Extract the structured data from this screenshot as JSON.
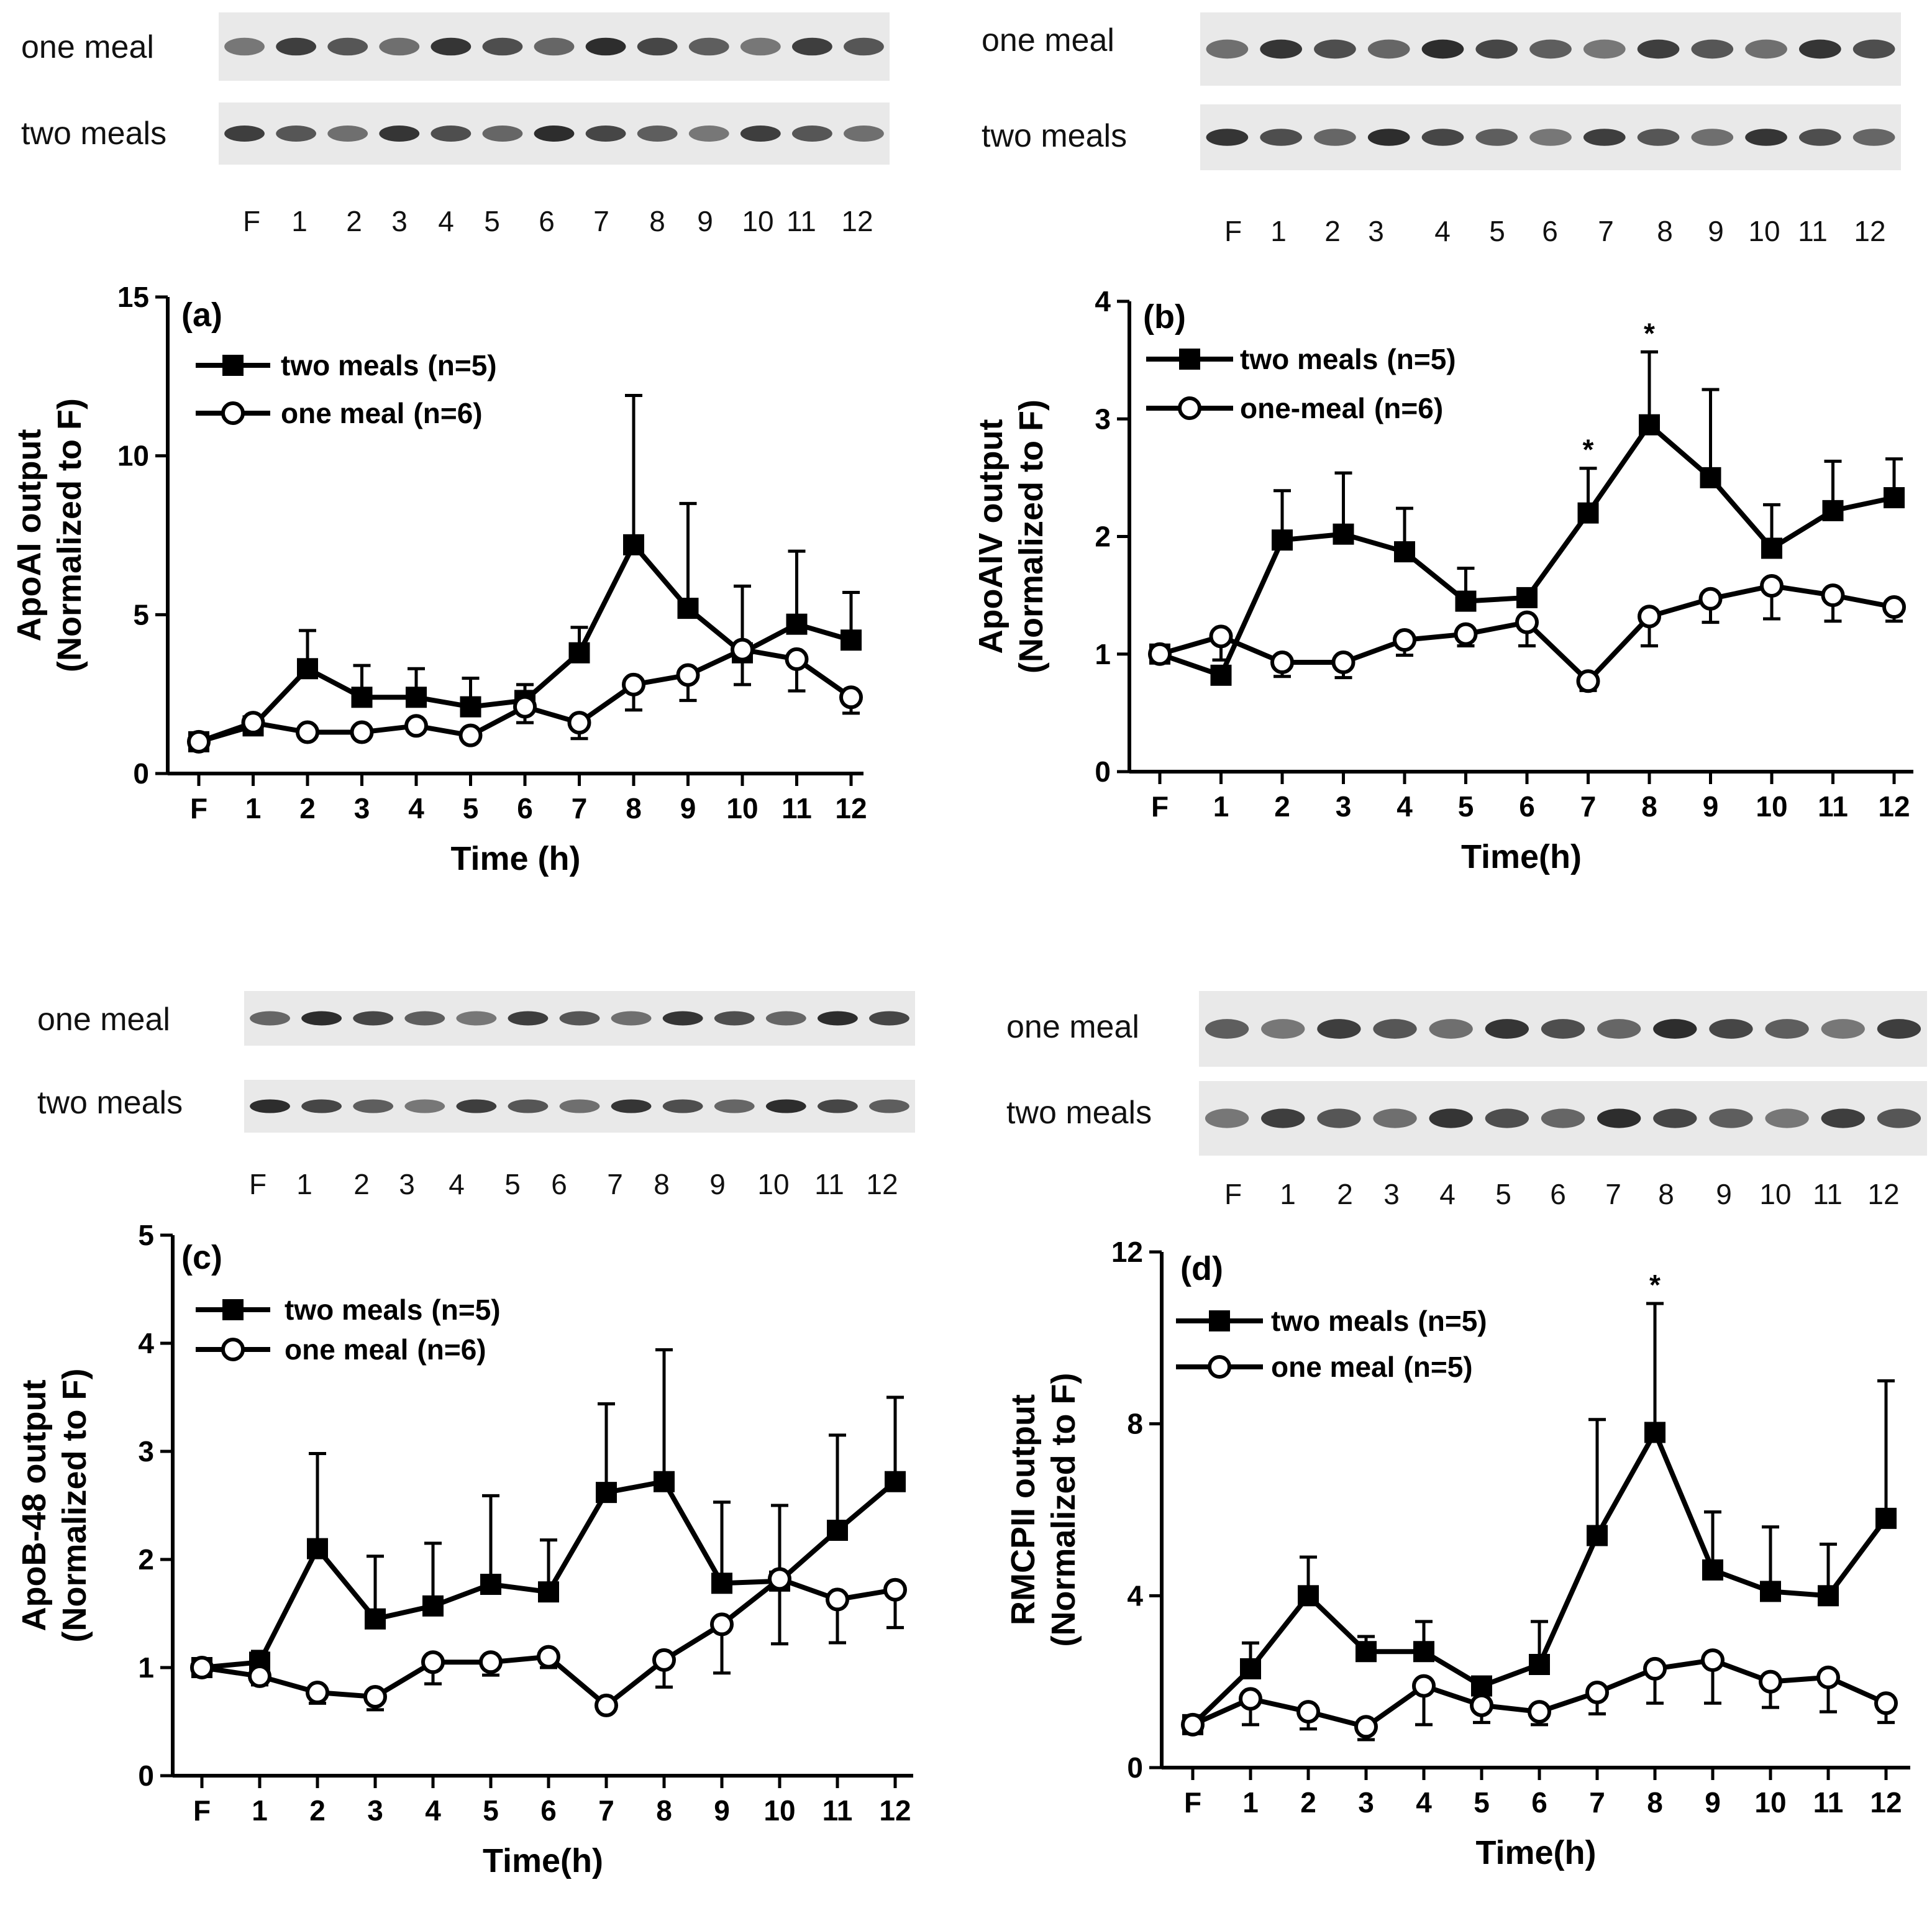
{
  "colors": {
    "ink": "#000000",
    "background": "#ffffff",
    "blot_bg": "#e9e9e9",
    "band": "#1a1a1a"
  },
  "chart_data": [
    {
      "id": "a",
      "type": "line",
      "panel_letter": "(a)",
      "xlabel": "Time (h)",
      "ylabel_line1": "ApoAI output",
      "ylabel_line2": "(Normalized to F)",
      "categories": [
        "F",
        "1",
        "2",
        "3",
        "4",
        "5",
        "6",
        "7",
        "8",
        "9",
        "10",
        "11",
        "12"
      ],
      "ylim": [
        0,
        15
      ],
      "yticks": [
        0,
        5,
        10,
        15
      ],
      "series": [
        {
          "name": "two meals",
          "n_label": "(n=5)",
          "marker": "filled-square",
          "values": [
            1.0,
            1.5,
            3.3,
            2.4,
            2.4,
            2.1,
            2.3,
            3.8,
            7.2,
            5.2,
            3.8,
            4.7,
            4.2
          ],
          "err_upper": [
            0,
            0.1,
            1.2,
            1.0,
            0.9,
            0.9,
            0.5,
            0.8,
            4.7,
            3.3,
            2.1,
            2.3,
            1.5
          ],
          "err_lower": [
            0,
            0,
            0,
            0,
            0,
            0,
            0,
            0,
            0,
            0,
            0,
            0,
            0
          ]
        },
        {
          "name": "one meal",
          "n_label": "(n=6)",
          "marker": "open-circle",
          "values": [
            1.0,
            1.6,
            1.3,
            1.3,
            1.5,
            1.2,
            2.1,
            1.6,
            2.8,
            3.1,
            3.9,
            3.6,
            2.4
          ],
          "err_upper": [
            0,
            0,
            0,
            0,
            0,
            0,
            0,
            0,
            0,
            0,
            0,
            0,
            0
          ],
          "err_lower": [
            0,
            0,
            0,
            0,
            0,
            0,
            0.5,
            0.5,
            0.8,
            0.8,
            1.1,
            1.0,
            0.5
          ]
        }
      ],
      "significance": [],
      "blot_lanes": [
        "F",
        "1",
        "2",
        "3",
        "4",
        "5",
        "6",
        "7",
        "8",
        "9",
        "10",
        "11",
        "12"
      ],
      "blot_rows": [
        "one meal",
        "two meals"
      ]
    },
    {
      "id": "b",
      "type": "line",
      "panel_letter": "(b)",
      "xlabel": "Time(h)",
      "ylabel_line1": "ApoAIV output",
      "ylabel_line2": "(Normalized to F)",
      "categories": [
        "F",
        "1",
        "2",
        "3",
        "4",
        "5",
        "6",
        "7",
        "8",
        "9",
        "10",
        "11",
        "12"
      ],
      "ylim": [
        0,
        4
      ],
      "yticks": [
        0,
        1,
        2,
        3,
        4
      ],
      "series": [
        {
          "name": "two meals",
          "n_label": "(n=5)",
          "marker": "filled-square",
          "values": [
            1.0,
            0.82,
            1.97,
            2.02,
            1.87,
            1.45,
            1.48,
            2.2,
            2.95,
            2.5,
            1.9,
            2.22,
            2.33
          ],
          "err_upper": [
            0,
            0,
            0.42,
            0.52,
            0.37,
            0.28,
            0,
            0.38,
            0.62,
            0.75,
            0.37,
            0.42,
            0.33
          ],
          "err_lower": [
            0,
            0,
            0,
            0,
            0,
            0,
            0,
            0,
            0,
            0,
            0,
            0,
            0
          ]
        },
        {
          "name": "one-meal",
          "n_label": "(n=6)",
          "marker": "open-circle",
          "values": [
            1.0,
            1.15,
            0.93,
            0.93,
            1.12,
            1.17,
            1.27,
            0.77,
            1.32,
            1.47,
            1.58,
            1.5,
            1.4
          ],
          "err_upper": [
            0,
            0,
            0,
            0,
            0,
            0,
            0,
            0,
            0,
            0,
            0,
            0,
            0
          ],
          "err_lower": [
            0,
            0.2,
            0.12,
            0.13,
            0.13,
            0.1,
            0.2,
            0.08,
            0.25,
            0.2,
            0.28,
            0.22,
            0.12
          ]
        }
      ],
      "significance": [
        {
          "category": "7",
          "value_top": 2.58,
          "label": "*"
        },
        {
          "category": "8",
          "value_top": 3.57,
          "label": "*"
        }
      ],
      "blot_lanes": [
        "F",
        "1",
        "2",
        "3",
        "4",
        "5",
        "6",
        "7",
        "8",
        "9",
        "10",
        "11",
        "12"
      ],
      "blot_rows": [
        "one meal",
        "two meals"
      ]
    },
    {
      "id": "c",
      "type": "line",
      "panel_letter": "(c)",
      "xlabel": "Time(h)",
      "ylabel_line1": "ApoB-48 output",
      "ylabel_line2": "(Normalized to F)",
      "categories": [
        "F",
        "1",
        "2",
        "3",
        "4",
        "5",
        "6",
        "7",
        "8",
        "9",
        "10",
        "11",
        "12"
      ],
      "ylim": [
        0,
        5
      ],
      "yticks": [
        0,
        1,
        2,
        3,
        4,
        5
      ],
      "series": [
        {
          "name": "two meals",
          "n_label": "(n=5)",
          "marker": "filled-square",
          "values": [
            1.0,
            1.05,
            2.1,
            1.45,
            1.57,
            1.77,
            1.7,
            2.62,
            2.72,
            1.78,
            1.8,
            2.27,
            2.72
          ],
          "err_upper": [
            0,
            0.1,
            0.88,
            0.58,
            0.58,
            0.82,
            0.48,
            0.82,
            1.22,
            0.75,
            0.7,
            0.88,
            0.78
          ],
          "err_lower": [
            0,
            0,
            0,
            0,
            0,
            0,
            0,
            0,
            0,
            0,
            0,
            0,
            0
          ]
        },
        {
          "name": "one meal",
          "n_label": "(n=6)",
          "marker": "open-circle",
          "values": [
            1.0,
            0.92,
            0.77,
            0.73,
            1.05,
            1.05,
            1.1,
            0.65,
            1.07,
            1.4,
            1.82,
            1.63,
            1.72
          ],
          "err_upper": [
            0,
            0,
            0,
            0,
            0,
            0,
            0,
            0,
            0,
            0,
            0,
            0,
            0
          ],
          "err_lower": [
            0,
            0.08,
            0.1,
            0.12,
            0.2,
            0.12,
            0.1,
            0.05,
            0.25,
            0.45,
            0.6,
            0.4,
            0.35
          ]
        }
      ],
      "significance": [],
      "blot_lanes": [
        "F",
        "1",
        "2",
        "3",
        "4",
        "5",
        "6",
        "7",
        "8",
        "9",
        "10",
        "11",
        "12"
      ],
      "blot_rows": [
        "one meal",
        "two meals"
      ]
    },
    {
      "id": "d",
      "type": "line",
      "panel_letter": "(d)",
      "xlabel": "Time(h)",
      "ylabel_line1": "RMCPII output",
      "ylabel_line2": "(Normalized to F)",
      "categories": [
        "F",
        "1",
        "2",
        "3",
        "4",
        "5",
        "6",
        "7",
        "8",
        "9",
        "10",
        "11",
        "12"
      ],
      "ylim": [
        0,
        12
      ],
      "yticks": [
        0,
        4,
        8,
        12
      ],
      "series": [
        {
          "name": "two meals",
          "n_label": "(n=5)",
          "marker": "filled-square",
          "values": [
            1.0,
            2.3,
            4.0,
            2.7,
            2.7,
            1.9,
            2.4,
            5.4,
            7.8,
            4.6,
            4.1,
            4.0,
            5.8
          ],
          "err_upper": [
            0,
            0.6,
            0.9,
            0.35,
            0.7,
            0.2,
            1.0,
            2.7,
            3.0,
            1.35,
            1.5,
            1.2,
            3.2
          ],
          "err_lower": [
            0,
            0,
            0,
            0,
            0,
            0,
            0,
            0,
            0,
            0,
            0,
            0,
            0
          ]
        },
        {
          "name": "one meal",
          "n_label": "(n=5)",
          "marker": "open-circle",
          "values": [
            1.0,
            1.6,
            1.3,
            0.95,
            1.9,
            1.45,
            1.3,
            1.75,
            2.3,
            2.5,
            2.0,
            2.1,
            1.5
          ],
          "err_upper": [
            0,
            0,
            0,
            0,
            0,
            0,
            0,
            0,
            0,
            0,
            0,
            0,
            0
          ],
          "err_lower": [
            0,
            0.6,
            0.4,
            0.3,
            0.9,
            0.4,
            0.3,
            0.5,
            0.8,
            1.0,
            0.6,
            0.8,
            0.45
          ]
        }
      ],
      "significance": [
        {
          "category": "8",
          "value_top": 10.8,
          "label": "*"
        }
      ],
      "blot_lanes": [
        "F",
        "1",
        "2",
        "3",
        "4",
        "5",
        "6",
        "7",
        "8",
        "9",
        "10",
        "11",
        "12"
      ],
      "blot_rows": [
        "one meal",
        "two meals"
      ]
    }
  ]
}
